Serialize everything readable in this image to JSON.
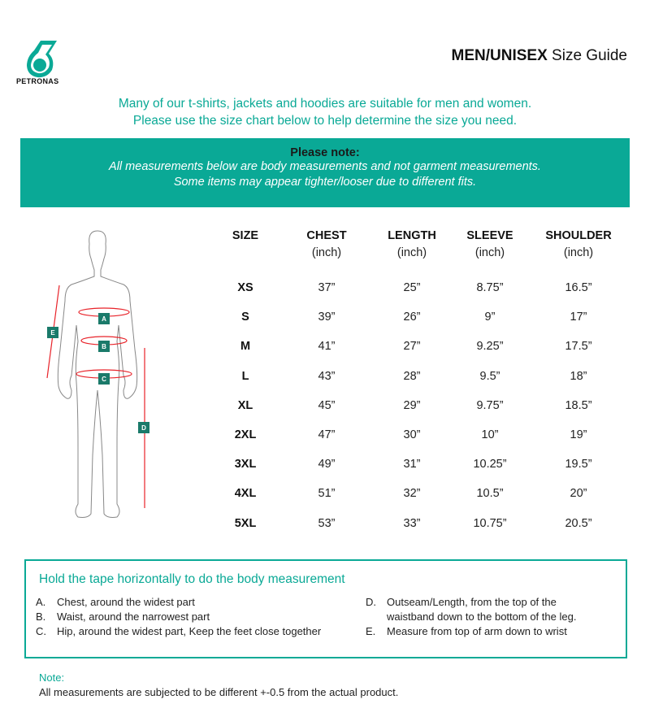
{
  "brand": {
    "name": "PETRONAS",
    "color": "#0aa996"
  },
  "header": {
    "title_bold": "MEN/UNISEX",
    "title_rest": " Size Guide"
  },
  "intro": [
    "Many of our t-shirts, jackets and hoodies are suitable for men and women.",
    "Please use the size chart below to help determine the size you need."
  ],
  "note_band": {
    "heading": "Please note:",
    "lines": [
      "All measurements below are body measurements and not garment measurements.",
      "Some items may appear tighter/looser due to different fits."
    ]
  },
  "figure": {
    "labels": [
      "A",
      "B",
      "C",
      "D",
      "E"
    ],
    "marker_color": "#1a7a6a",
    "line_color": "#e8232a"
  },
  "table": {
    "columns": [
      {
        "label": "SIZE",
        "unit": ""
      },
      {
        "label": "CHEST",
        "unit": "(inch)"
      },
      {
        "label": "LENGTH",
        "unit": "(inch)"
      },
      {
        "label": "SLEEVE",
        "unit": "(inch)"
      },
      {
        "label": "SHOULDER",
        "unit": "(inch)"
      }
    ],
    "rows": [
      [
        "XS",
        "37”",
        "25”",
        "8.75”",
        "16.5”"
      ],
      [
        "S",
        "39”",
        "26”",
        "9”",
        "17”"
      ],
      [
        "M",
        "41”",
        "27”",
        "9.25”",
        "17.5”"
      ],
      [
        "L",
        "43”",
        "28”",
        "9.5”",
        "18”"
      ],
      [
        "XL",
        "45”",
        "29”",
        "9.75”",
        "18.5”"
      ],
      [
        "2XL",
        "47”",
        "30”",
        "10”",
        "19”"
      ],
      [
        "3XL",
        "49”",
        "31”",
        "10.25”",
        "19.5”"
      ],
      [
        "4XL",
        "51”",
        "32”",
        "10.5”",
        "20”"
      ],
      [
        "5XL",
        "53”",
        "33”",
        "10.75”",
        "20.5”"
      ]
    ]
  },
  "tape": {
    "title": "Hold the tape horizontally to do the body measurement",
    "items": [
      {
        "key": "A.",
        "text": "Chest, around the widest part"
      },
      {
        "key": "B.",
        "text": "Waist, around the narrowest part"
      },
      {
        "key": "C.",
        "text": "Hip, around the widest part, Keep the feet close together"
      },
      {
        "key": "D.",
        "text": "Outseam/Length, from the top of the",
        "text2": "waistband down to the bottom of the leg."
      },
      {
        "key": "E.",
        "text": "Measure from top of arm down to wrist"
      }
    ]
  },
  "footer": {
    "label": "Note:",
    "text": "All measurements are subjected to be different +-0.5 from the actual product."
  }
}
